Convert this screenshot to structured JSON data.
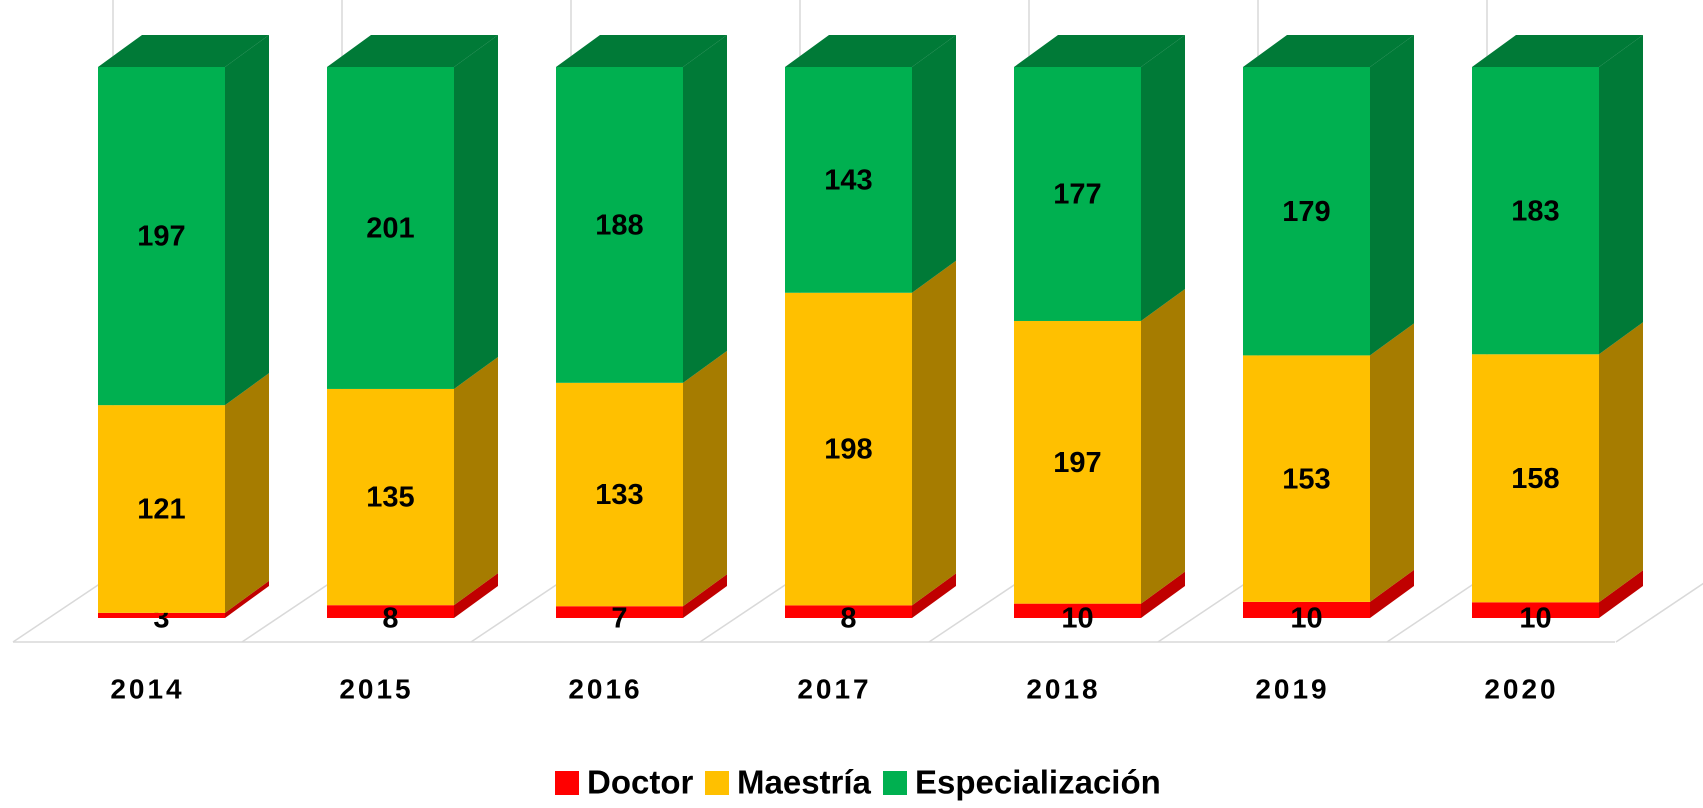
{
  "chart_data": {
    "type": "bar",
    "stacking": "percent",
    "three_d": true,
    "categories": [
      "2014",
      "2015",
      "2016",
      "2017",
      "2018",
      "2019",
      "2020"
    ],
    "series": [
      {
        "name": "Doctor",
        "color": "#ff0000",
        "side_color": "#c00000",
        "values": [
          3,
          8,
          7,
          8,
          10,
          10,
          10
        ]
      },
      {
        "name": "Maestría",
        "color": "#ffc000",
        "side_color": "#a67c00",
        "values": [
          121,
          135,
          133,
          198,
          197,
          153,
          158
        ]
      },
      {
        "name": "Especialización",
        "color": "#00b050",
        "side_color": "#007a37",
        "values": [
          197,
          201,
          188,
          143,
          177,
          179,
          183
        ]
      }
    ],
    "legend": "bottom"
  }
}
